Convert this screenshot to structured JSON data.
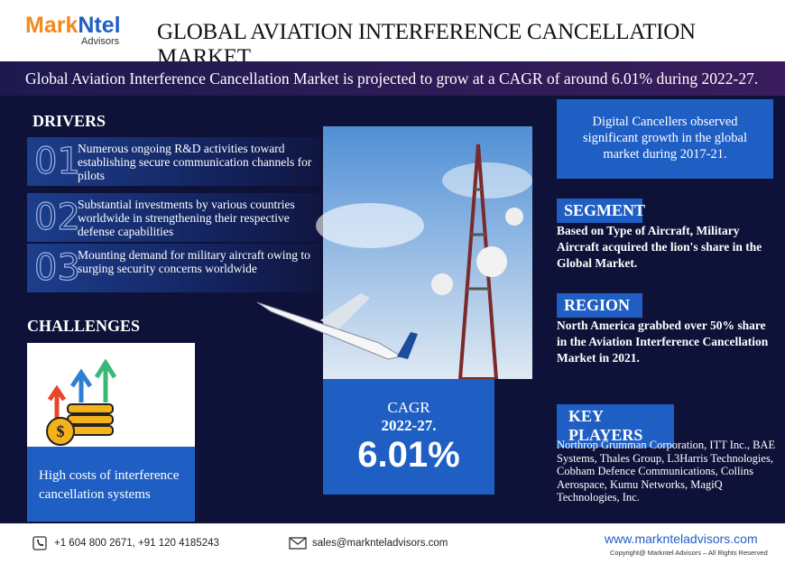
{
  "header": {
    "logo_brand_a": "Mark",
    "logo_brand_b": "Ntel",
    "logo_sub": "Advisors",
    "title": "GLOBAL AVIATION INTERFERENCE CANCELLATION MARKET"
  },
  "banner": "Global Aviation Interference Cancellation Market is projected to grow at a CAGR of around 6.01% during 2022-27.",
  "drivers": {
    "heading": "DRIVERS",
    "items": [
      {
        "number": "01",
        "text": "Numerous ongoing R&D activities toward establishing secure communication channels for pilots"
      },
      {
        "number": "02",
        "text": "Substantial investments by various countries worldwide in strengthening their respective defense capabilities"
      },
      {
        "number": "03",
        "text": "Mounting demand for military aircraft owing to surging security concerns worldwide"
      }
    ]
  },
  "challenges": {
    "heading": "CHALLENGES",
    "text": "High costs of interference cancellation systems"
  },
  "cagr": {
    "label": "CAGR",
    "period": "2022-27.",
    "value": "6.01%"
  },
  "highlight": "Digital Cancellers observed significant growth in the global market during 2017-21.",
  "segment": {
    "heading": "SEGMENT",
    "text": "Based on Type of Aircraft, Military Aircraft acquired the lion's share in the Global Market."
  },
  "region": {
    "heading": "REGION",
    "text": "North America grabbed over 50% share in the Aviation Interference Cancellation Market in 2021."
  },
  "key_players": {
    "heading": "KEY PLAYERS",
    "text": "Northrop Grumman Corporation, ITT Inc., BAE Systems, Thales Group, L3Harris Technologies, Cobham Defence Communications, Collins Aerospace, Kumu Networks, MagiQ Technologies, Inc."
  },
  "footer": {
    "phone": "+1 604 800 2671, +91 120 4185243",
    "email": "sales@marknteladvisors.com",
    "website": "www.marknteladvisors.com",
    "copyright": "Copyright@ Markntel Advisors – All Rights Reserved"
  }
}
